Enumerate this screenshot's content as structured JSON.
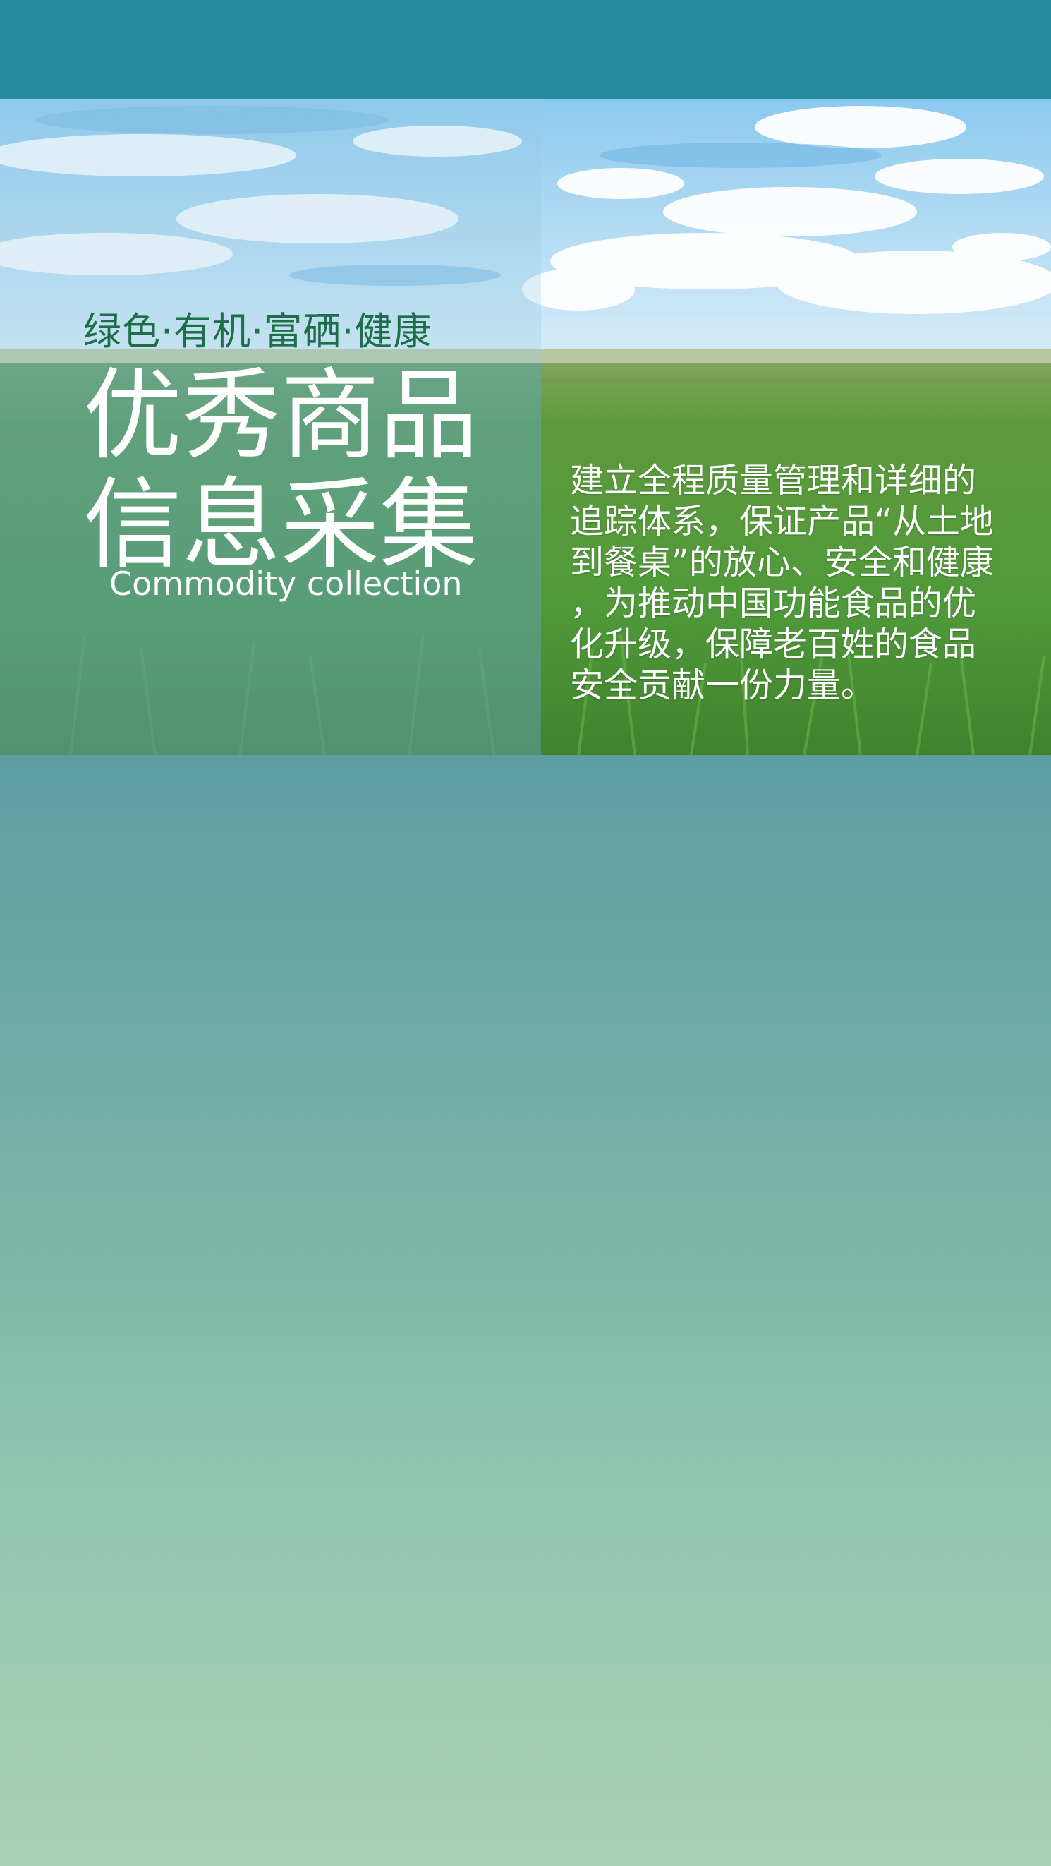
{
  "hero": {
    "tagline": "绿色·有机·富硒·健康",
    "title_line1": "优秀商品",
    "title_line2": "信息采集",
    "subtitle_en": "Commodity collection",
    "description_lines": [
      "建立全程质量管理和详细的",
      "追踪体系，保证产品“从土地",
      "到餐桌”的放心、安全和健康",
      "，为推动中国功能食品的优",
      "化升级，保障老百姓的食品",
      "安全贡献一份力量。"
    ]
  },
  "colors": {
    "top_bar": "#258b9c",
    "tagline": "#1f6e4a",
    "lower_top": "#5d9ea3",
    "lower_bottom": "#a8d0b2"
  }
}
